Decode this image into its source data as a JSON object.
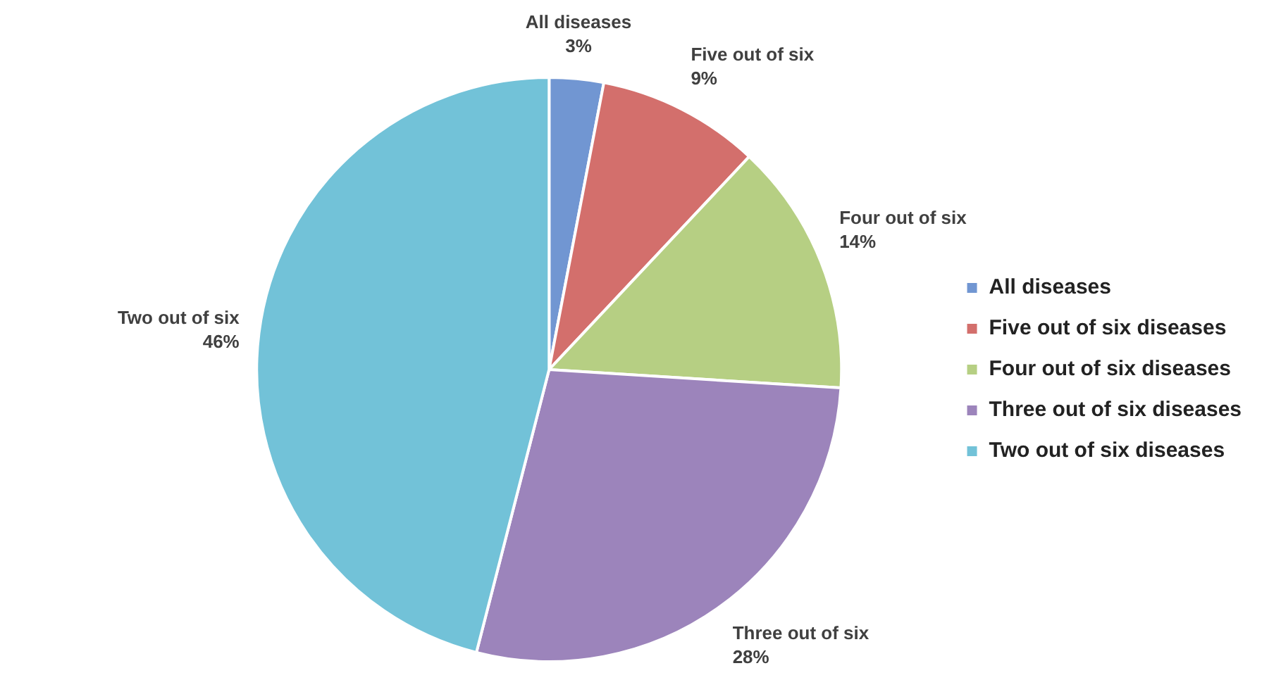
{
  "chart_data": {
    "type": "pie",
    "categories": [
      "All diseases",
      "Five out of six diseases",
      "Four out of six diseases",
      "Three out of six diseases",
      "Two out of six diseases"
    ],
    "values": [
      3,
      9,
      14,
      28,
      46
    ],
    "colors": [
      "#7196d2",
      "#d36f6c",
      "#b6cf83",
      "#9c84bb",
      "#72c2d8"
    ],
    "value_labels": [
      "3%",
      "9%",
      "14%",
      "28%",
      "46%"
    ],
    "annotations": [
      {
        "text": "All diseases",
        "x": "All diseases"
      },
      {
        "text": "Five out of six",
        "x": "Five out of six diseases"
      },
      {
        "text": "Four out of six",
        "x": "Four out of six diseases"
      },
      {
        "text": "Three out of six",
        "x": "Three out of six diseases"
      },
      {
        "text": "Two out of six",
        "x": "Two out of six diseases"
      }
    ],
    "legend": "right"
  }
}
